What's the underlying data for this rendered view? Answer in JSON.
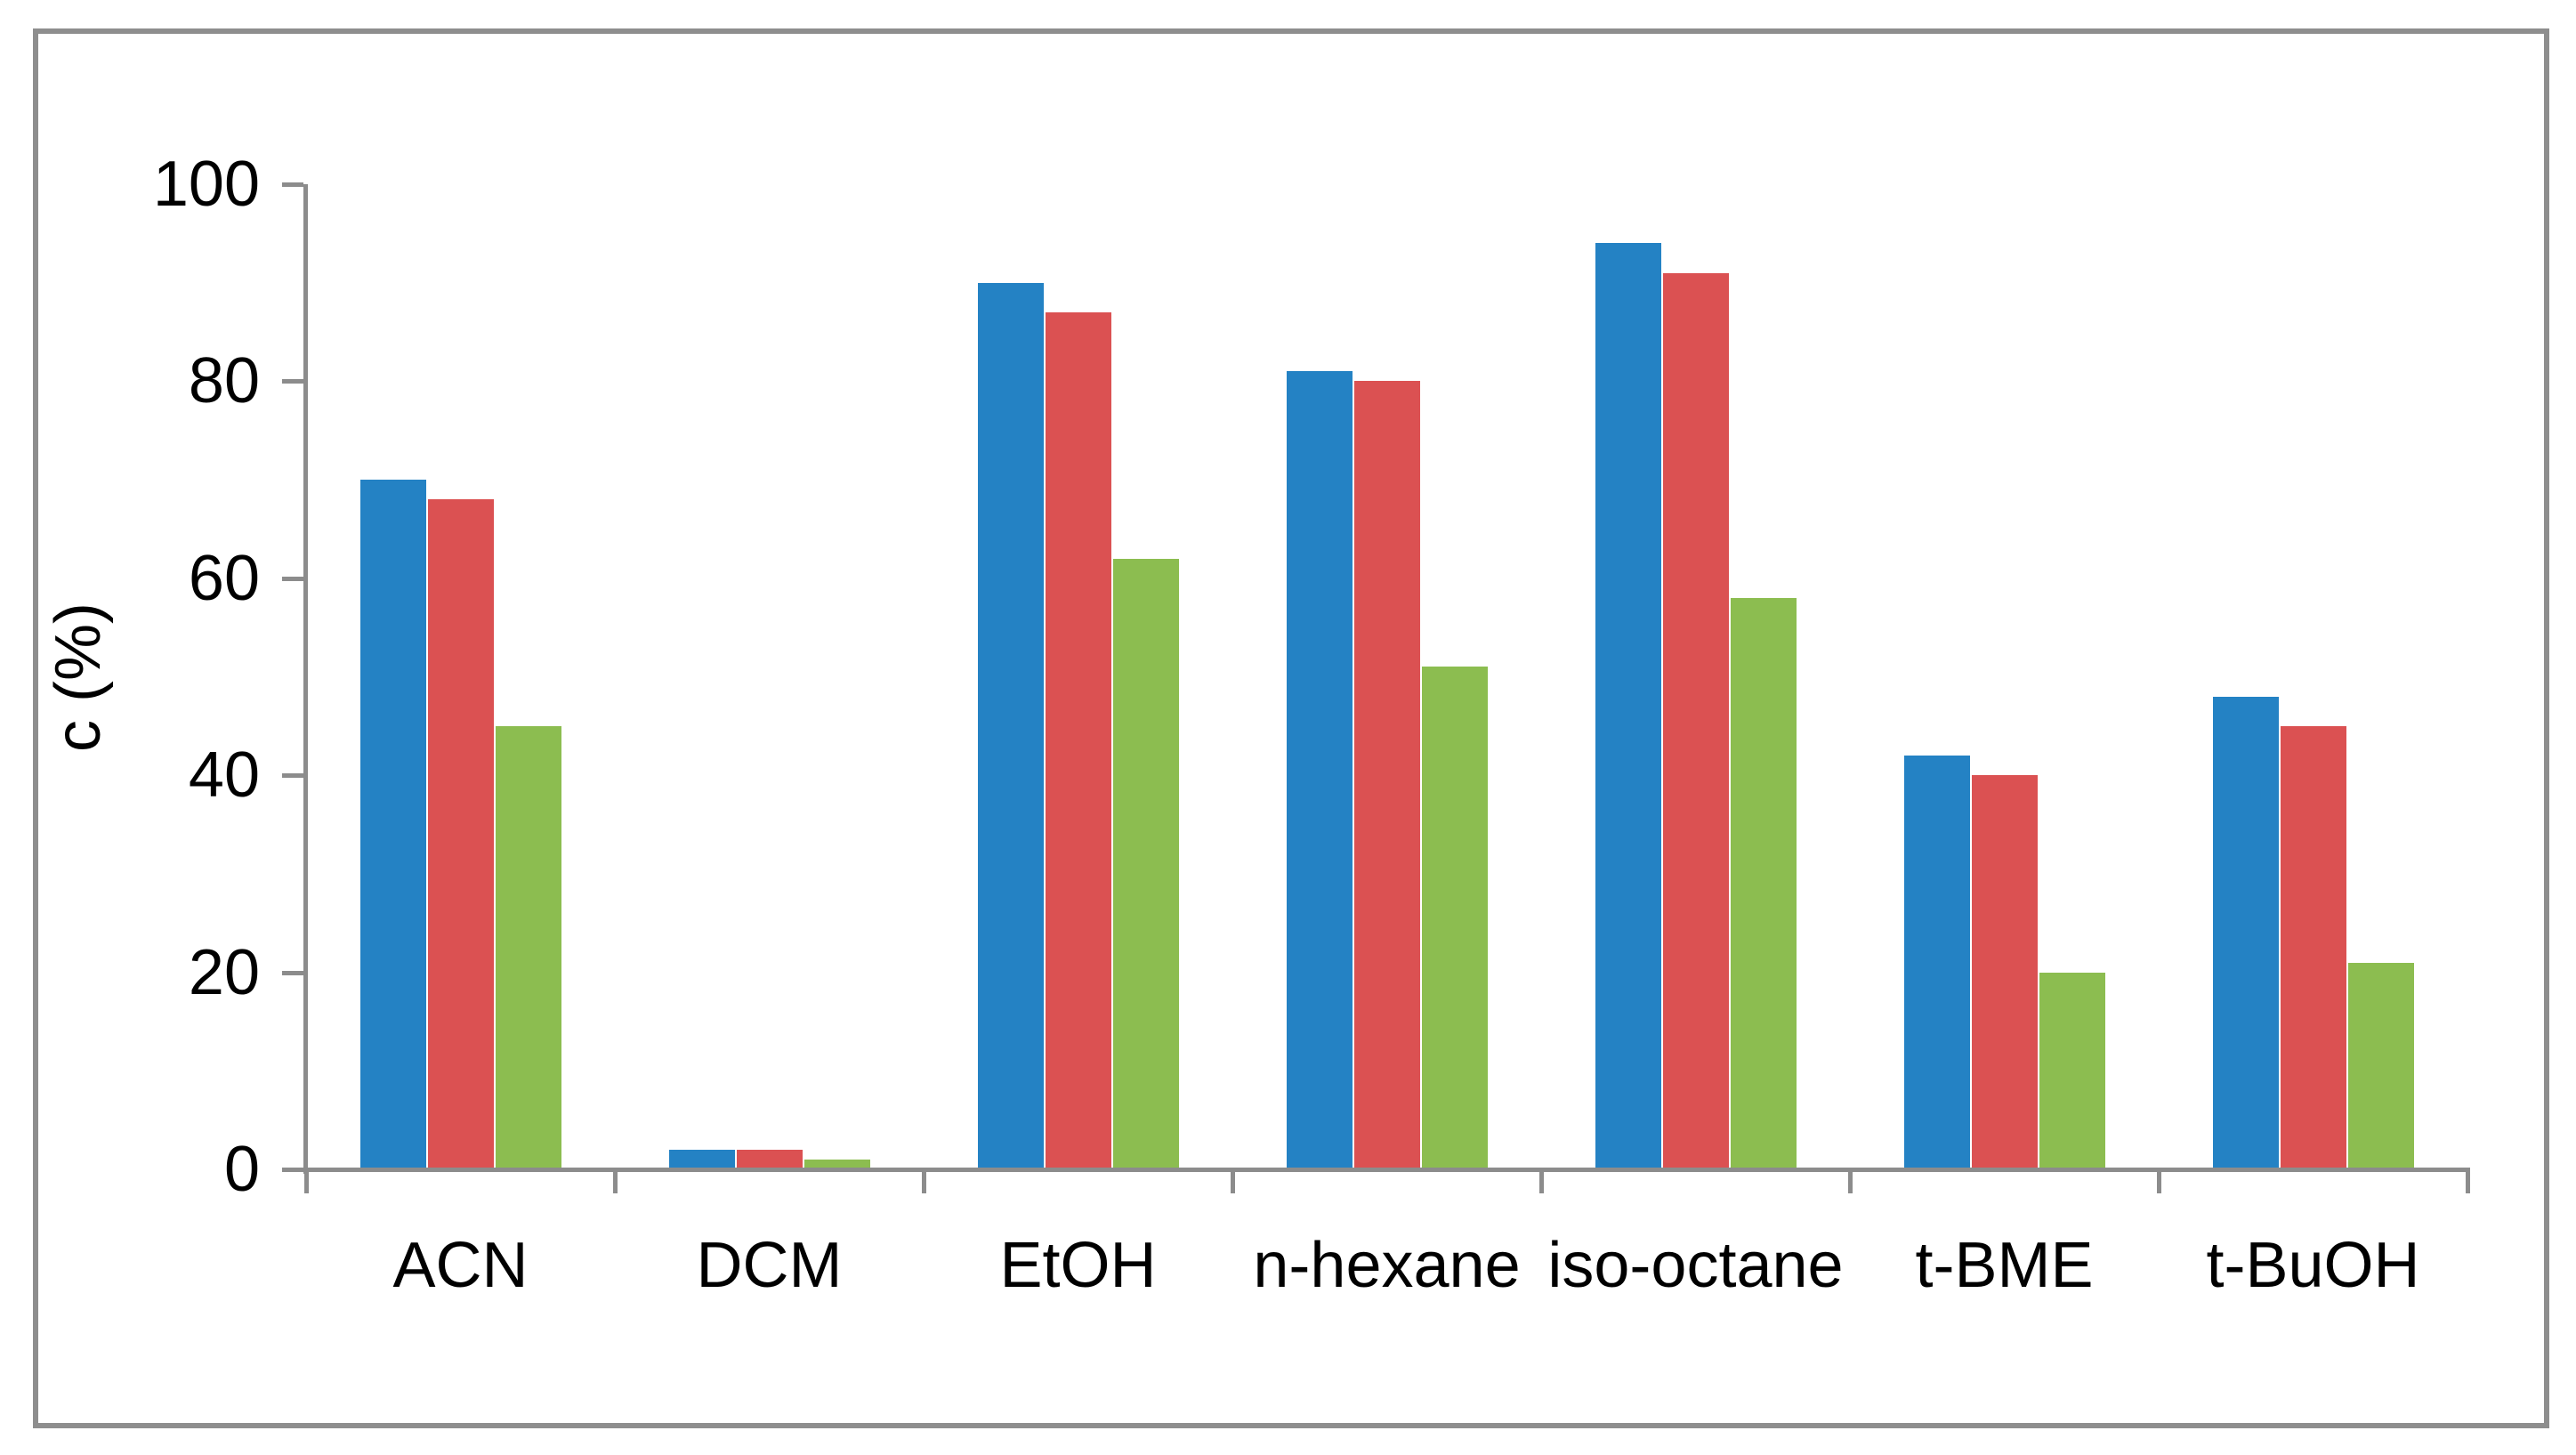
{
  "chart_data": {
    "type": "bar",
    "title": "",
    "categories": [
      "ACN",
      "DCM",
      "EtOH",
      "n-hexane",
      "iso-octane",
      "t-BME",
      "t-BuOH"
    ],
    "series": [
      {
        "name": "blue",
        "color": "#2482C4",
        "values": [
          70,
          2,
          90,
          81,
          94,
          42,
          48
        ]
      },
      {
        "name": "red",
        "color": "#DB5152",
        "values": [
          68,
          2,
          87,
          80,
          91,
          40,
          45
        ]
      },
      {
        "name": "green",
        "color": "#8CBD50",
        "values": [
          45,
          1,
          62,
          51,
          58,
          20,
          21
        ]
      }
    ],
    "xlabel": "",
    "ylabel": "c (%)",
    "ylim": [
      0,
      100
    ],
    "yticks": [
      0,
      20,
      40,
      60,
      80,
      100
    ],
    "grid": false,
    "legend_position": "none",
    "axis_color": "#8C8C8C",
    "frame_color": "#8E8E8E",
    "text_color": "#000000",
    "background_color": "#FFFFFF"
  }
}
